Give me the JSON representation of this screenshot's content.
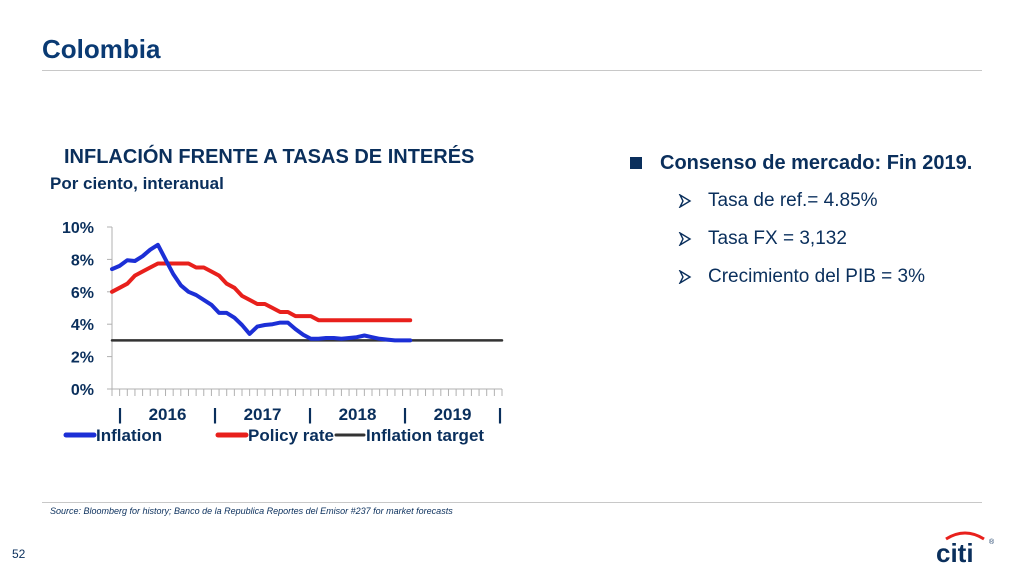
{
  "slide": {
    "title": "Colombia",
    "page_number": "52",
    "source": "Source: Bloomberg for history; Banco de la Republica Reportes del Emisor #237 for market forecasts",
    "logo_text": "citi",
    "logo_mark": "®"
  },
  "bullets": {
    "main": "Consenso de mercado: Fin 2019.",
    "items": [
      "Tasa de ref.= 4.85%",
      "Tasa FX = 3,132",
      "Crecimiento del PIB = 3%"
    ]
  },
  "colors": {
    "inflation": "#1c2fd6",
    "policy_rate": "#e8201c",
    "inflation_target": "#333333",
    "heading": "#0a3a73"
  },
  "chart_data": {
    "type": "line",
    "title": "INFLACIÓN FRENTE A TASAS DE INTERÉS",
    "subtitle": "Por ciento, interanual",
    "ylim": [
      0,
      10
    ],
    "y_ticks": [
      "0%",
      "2%",
      "4%",
      "6%",
      "8%",
      "10%"
    ],
    "x_axis_labels": [
      "|",
      "2016",
      "|",
      "2017",
      "|",
      "2018",
      "|",
      "2019",
      "|"
    ],
    "x_range_months": [
      "2015-09",
      "2019-12"
    ],
    "grid": false,
    "legend_position": "bottom",
    "series": [
      {
        "name": "Inflation",
        "x": [
          "2015-09",
          "2015-10",
          "2015-11",
          "2015-12",
          "2016-01",
          "2016-02",
          "2016-03",
          "2016-04",
          "2016-05",
          "2016-06",
          "2016-07",
          "2016-08",
          "2016-09",
          "2016-10",
          "2016-11",
          "2016-12",
          "2017-01",
          "2017-02",
          "2017-03",
          "2017-04",
          "2017-05",
          "2017-06",
          "2017-07",
          "2017-08",
          "2017-09",
          "2017-10",
          "2017-11",
          "2017-12",
          "2018-01",
          "2018-02",
          "2018-03",
          "2018-04",
          "2018-05",
          "2018-06",
          "2018-07",
          "2018-08",
          "2018-09",
          "2018-10",
          "2018-11",
          "2018-12"
        ],
        "values": [
          7.4,
          7.6,
          7.95,
          7.9,
          8.2,
          8.6,
          8.9,
          8.0,
          7.1,
          6.4,
          6.0,
          5.8,
          5.5,
          5.2,
          4.7,
          4.7,
          4.4,
          3.95,
          3.4,
          3.85,
          3.95,
          4.0,
          4.1,
          4.1,
          3.7,
          3.35,
          3.1,
          3.1,
          3.15,
          3.15,
          3.1,
          3.15,
          3.2,
          3.3,
          3.2,
          3.1,
          3.05,
          3.0,
          3.0,
          3.0
        ]
      },
      {
        "name": "Policy rate",
        "x": [
          "2015-09",
          "2015-10",
          "2015-11",
          "2015-12",
          "2016-01",
          "2016-02",
          "2016-03",
          "2016-04",
          "2016-05",
          "2016-06",
          "2016-07",
          "2016-08",
          "2016-09",
          "2016-10",
          "2016-11",
          "2016-12",
          "2017-01",
          "2017-02",
          "2017-03",
          "2017-04",
          "2017-05",
          "2017-06",
          "2017-07",
          "2017-08",
          "2017-09",
          "2017-10",
          "2017-11",
          "2017-12",
          "2018-01",
          "2018-02",
          "2018-03",
          "2018-04",
          "2018-05",
          "2018-06",
          "2018-07",
          "2018-08",
          "2018-09",
          "2018-10",
          "2018-11",
          "2018-12"
        ],
        "values": [
          6.0,
          6.25,
          6.5,
          7.0,
          7.25,
          7.5,
          7.75,
          7.75,
          7.75,
          7.75,
          7.75,
          7.5,
          7.5,
          7.25,
          7.0,
          6.5,
          6.25,
          5.75,
          5.5,
          5.25,
          5.25,
          5.0,
          4.75,
          4.75,
          4.5,
          4.5,
          4.5,
          4.25,
          4.25,
          4.25,
          4.25,
          4.25,
          4.25,
          4.25,
          4.25,
          4.25,
          4.25,
          4.25,
          4.25,
          4.25
        ]
      },
      {
        "name": "Inflation target",
        "x": [
          "2015-09",
          "2019-12"
        ],
        "values": [
          3.0,
          3.0
        ]
      }
    ]
  }
}
